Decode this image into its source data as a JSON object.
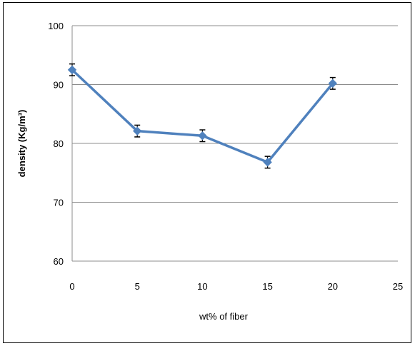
{
  "chart_data": {
    "type": "line",
    "title": "",
    "xlabel": "wt% of fiber",
    "ylabel": "density (Kg/m³)",
    "xlim": [
      0,
      25
    ],
    "ylim": [
      60,
      100
    ],
    "x_ticks": [
      "0",
      "5",
      "10",
      "15",
      "20",
      "25"
    ],
    "y_ticks": [
      "60",
      "70",
      "80",
      "90",
      "100"
    ],
    "grid": true,
    "legend": "none",
    "series": [
      {
        "x": [
          0,
          5,
          10,
          15,
          20
        ],
        "values": [
          92.5,
          82.1,
          81.3,
          76.8,
          90.2
        ],
        "error": [
          1.0,
          1.0,
          1.0,
          1.0,
          1.0
        ],
        "color": "#4F81BD"
      }
    ]
  }
}
